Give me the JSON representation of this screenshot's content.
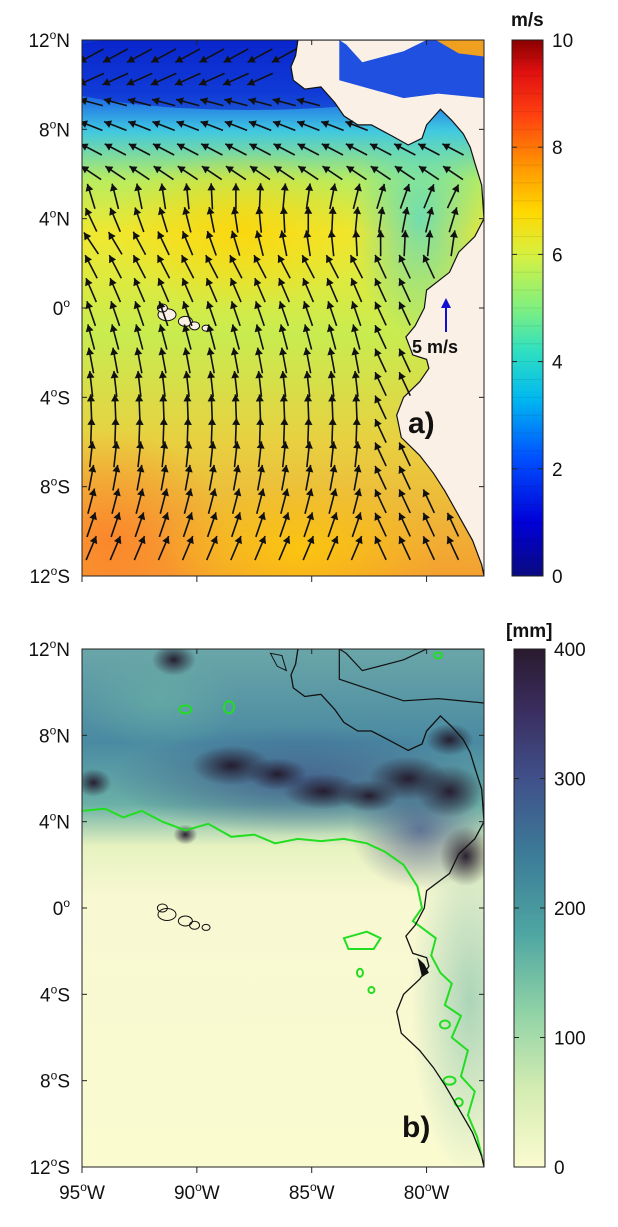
{
  "panel_a": {
    "label": "a)",
    "lat_ticks": [
      {
        "deg": "12",
        "hem": "N",
        "lat": 12
      },
      {
        "deg": "8",
        "hem": "N",
        "lat": 8
      },
      {
        "deg": "4",
        "hem": "N",
        "lat": 4
      },
      {
        "deg": "0",
        "hem": "",
        "lat": 0
      },
      {
        "deg": "4",
        "hem": "S",
        "lat": -4
      },
      {
        "deg": "8",
        "hem": "S",
        "lat": -8
      },
      {
        "deg": "12",
        "hem": "S",
        "lat": -12
      }
    ],
    "colorbar": {
      "unit": "m/s",
      "ticks": [
        "0",
        "2",
        "4",
        "6",
        "8",
        "10"
      ],
      "min": 0,
      "max": 10
    },
    "reference_vector_label": "5 m/s",
    "reference_vector_color": "#1010d0"
  },
  "panel_b": {
    "label": "b)",
    "lat_ticks": [
      {
        "deg": "12",
        "hem": "N",
        "lat": 12
      },
      {
        "deg": "8",
        "hem": "N",
        "lat": 8
      },
      {
        "deg": "4",
        "hem": "N",
        "lat": 4
      },
      {
        "deg": "0",
        "hem": "",
        "lat": 0
      },
      {
        "deg": "4",
        "hem": "S",
        "lat": -4
      },
      {
        "deg": "8",
        "hem": "S",
        "lat": -8
      },
      {
        "deg": "12",
        "hem": "S",
        "lat": -12
      }
    ],
    "lon_ticks": [
      {
        "deg": "95",
        "hem": "W",
        "lon": -95
      },
      {
        "deg": "90",
        "hem": "W",
        "lon": -90
      },
      {
        "deg": "85",
        "hem": "W",
        "lon": -85
      },
      {
        "deg": "80",
        "hem": "W",
        "lon": -80
      }
    ],
    "colorbar": {
      "unit": "[mm]",
      "ticks": [
        "0",
        "100",
        "200",
        "300",
        "400"
      ],
      "min": 0,
      "max": 400
    },
    "contour_color": "#22dd22"
  },
  "map_extent": {
    "lon_min": -95,
    "lon_max": -77.5,
    "lat_min": -12,
    "lat_max": 12
  },
  "colors": {
    "land": "#faf0e6",
    "coast": "#111111"
  }
}
